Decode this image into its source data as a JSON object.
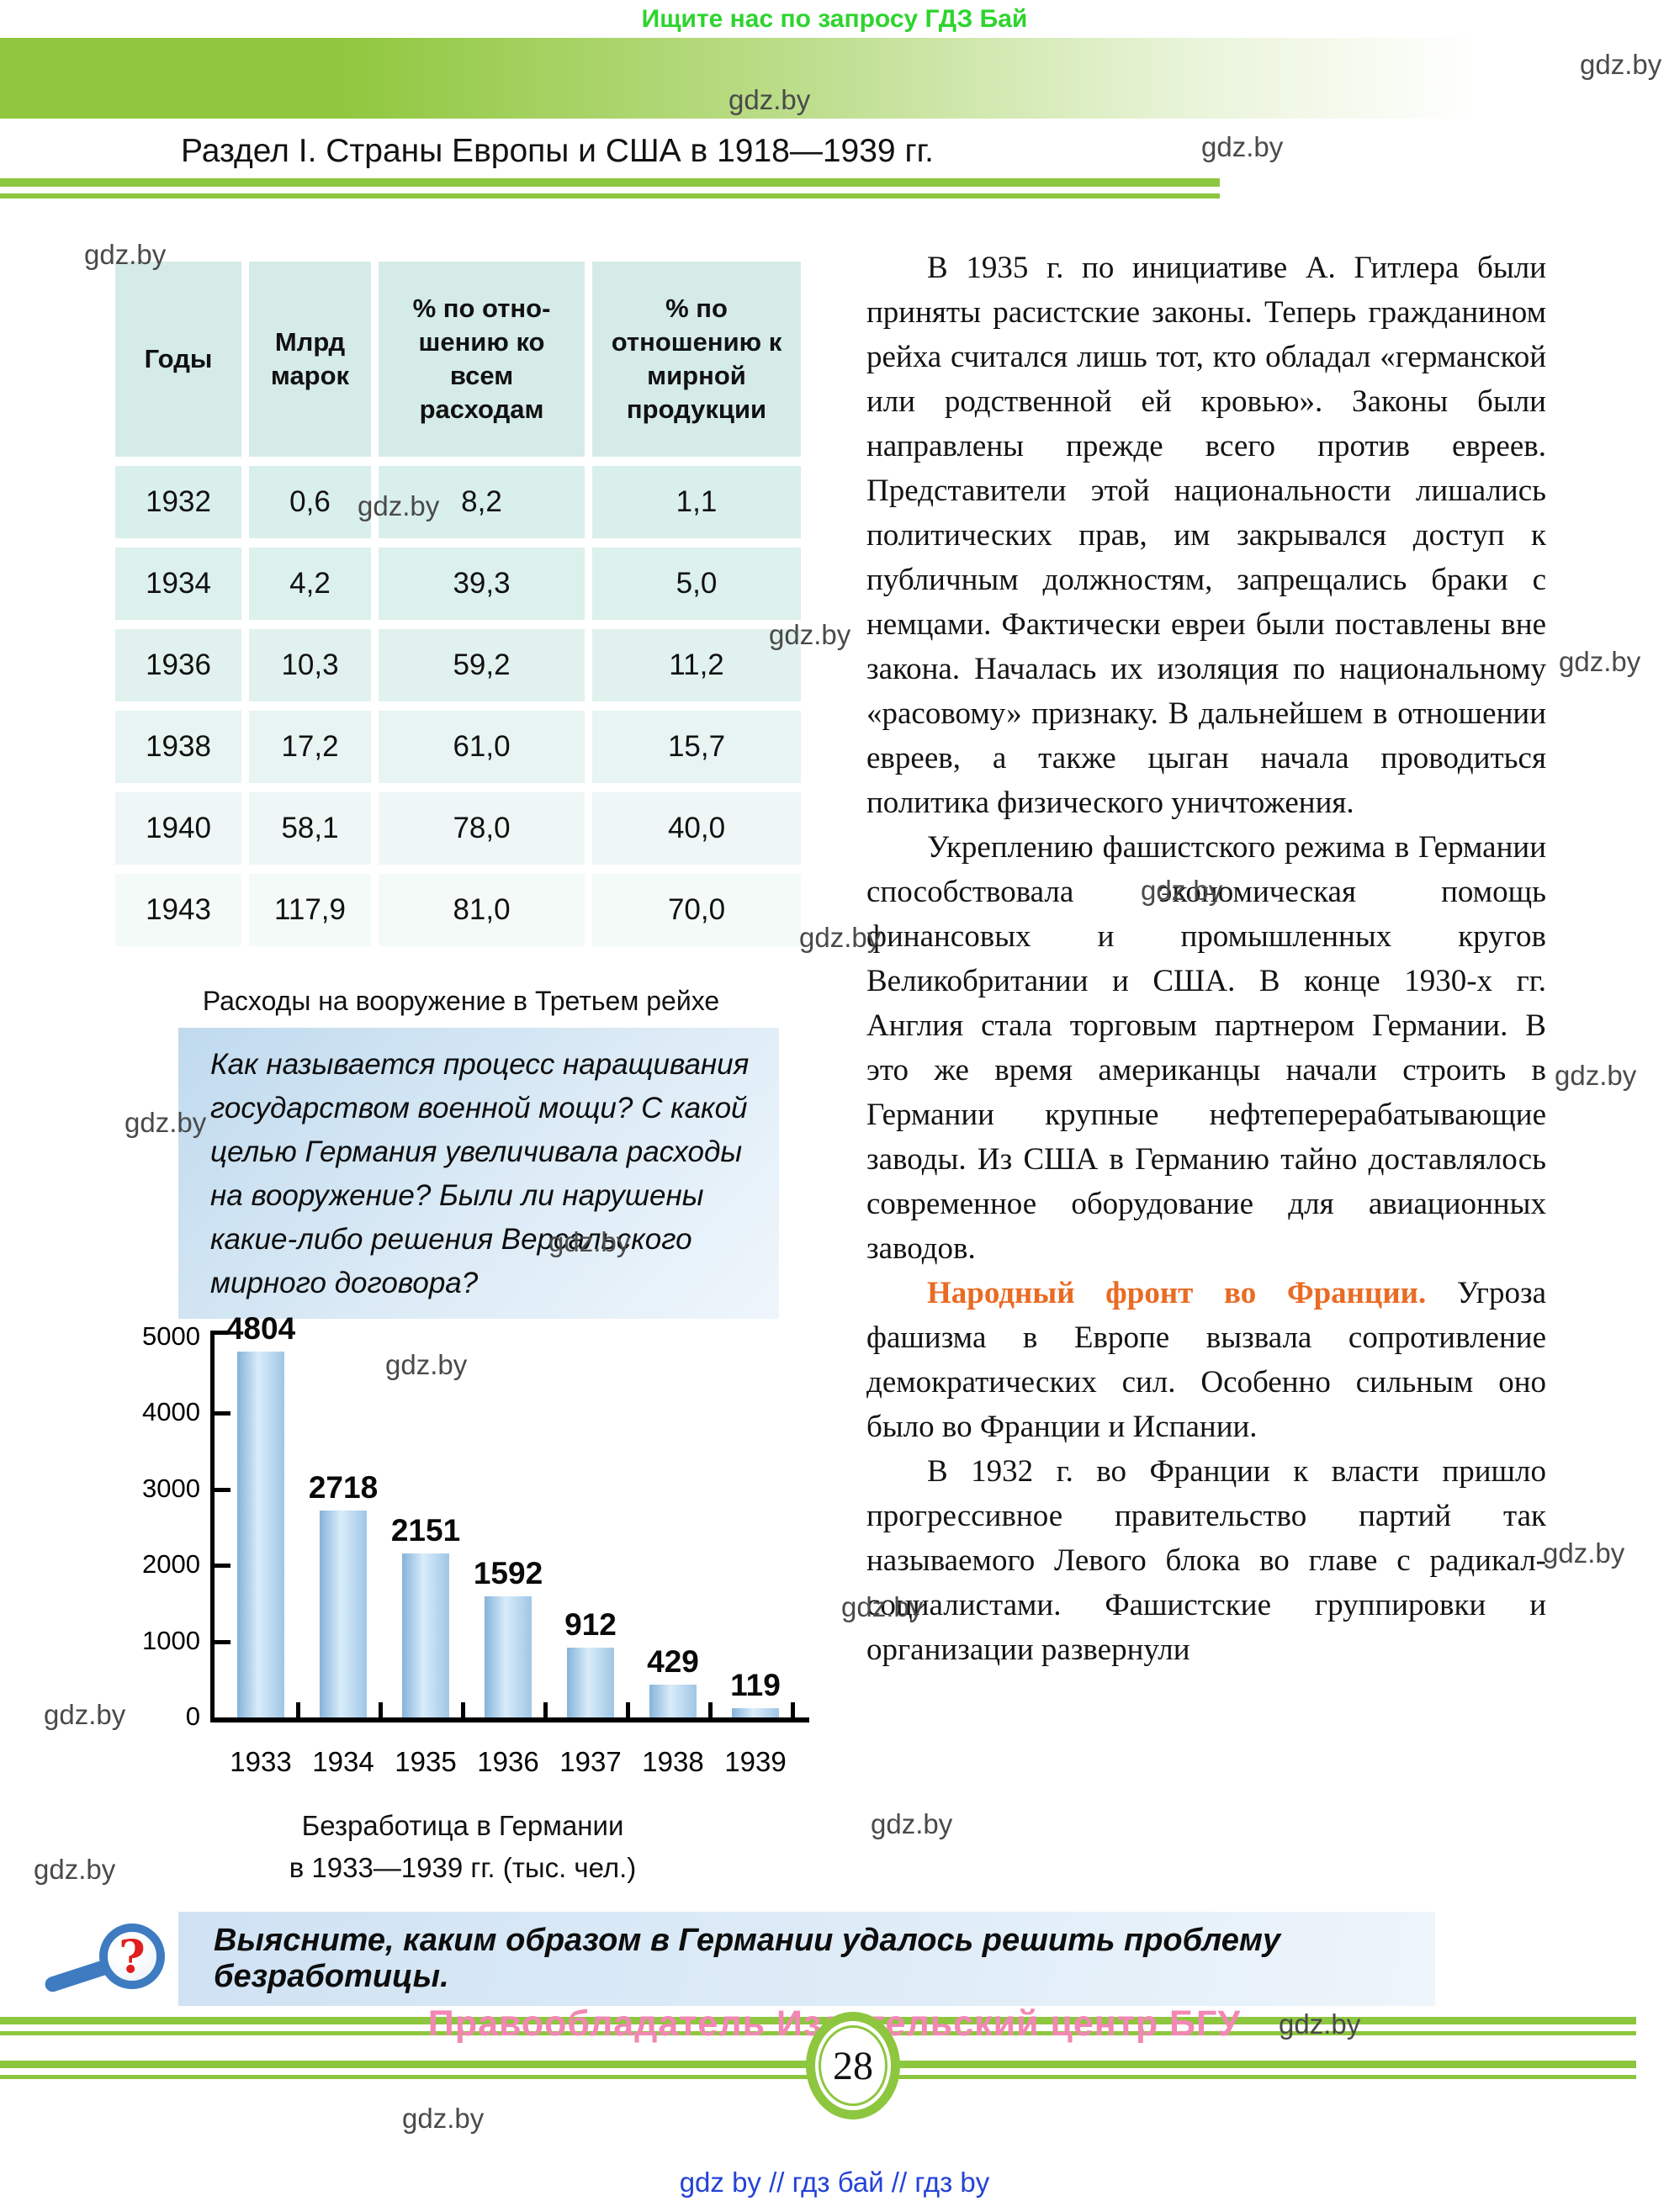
{
  "page": {
    "promo_top": "Ищите нас по запросу ГДЗ Бай",
    "watermark": "gdz.by",
    "copyright": "Правообладатель Издательский центр БГУ",
    "page_number": "28",
    "footer_links": "gdz by  //  гдз бай  //  гдз by"
  },
  "header": {
    "title": "Раздел I. Страны Европы и США в 1918—1939 гг."
  },
  "armament_table": {
    "columns": [
      "Годы",
      "Млрд марок",
      "% по отно- шению ко всем расходам",
      "% по отношению к мирной продукции"
    ],
    "rows": [
      [
        "1932",
        "0,6",
        "8,2",
        "1,1"
      ],
      [
        "1934",
        "4,2",
        "39,3",
        "5,0"
      ],
      [
        "1936",
        "10,3",
        "59,2",
        "11,2"
      ],
      [
        "1938",
        "17,2",
        "61,0",
        "15,7"
      ],
      [
        "1940",
        "58,1",
        "78,0",
        "40,0"
      ],
      [
        "1943",
        "117,9",
        "81,0",
        "70,0"
      ]
    ],
    "caption": "Расходы на вооружение в Третьем рейхе"
  },
  "question_box": {
    "text": "Как называется процесс наращивания государством военной мощи? С какой целью Германия увеличивала расходы на вооружение? Были ли нарушены какие-либо решения Версальского мирного договора?"
  },
  "chart_data": {
    "type": "bar",
    "categories": [
      "1933",
      "1934",
      "1935",
      "1936",
      "1937",
      "1938",
      "1939"
    ],
    "values": [
      4804,
      2718,
      2151,
      1592,
      912,
      429,
      119
    ],
    "title": "Безработица в Германии в 1933—1939 гг. (тыс. чел.)",
    "caption_line1": "Безработица в Германии",
    "caption_line2": "в 1933—1939 гг. (тыс. чел.)",
    "xlabel": "",
    "ylabel": "",
    "ylim": [
      0,
      5000
    ],
    "yticks": [
      0,
      1000,
      2000,
      3000,
      4000,
      5000
    ],
    "grid": false,
    "legend": "none",
    "bar_color": "#a9cfec"
  },
  "article": {
    "accent_color": "#e96b24",
    "paragraphs": [
      {
        "heading": "",
        "text": "В 1935 г. по инициативе А. Гитлера были приняты расистские законы. Теперь гражданином рейха считался лишь тот, кто обладал «германской или родственной ей кровью». Законы были направлены прежде всего против евреев. Представители этой национальности лишались политических прав, им закрывался доступ к публичным должностям, запрещались браки с немцами. Фактически евреи были поставлены вне закона. Началась их изоляция по национальному «расовому» признаку. В дальнейшем в отношении евреев, а также цыган начала проводиться политика физического уничтожения."
      },
      {
        "heading": "",
        "text": "Укреплению фашистского режима в Германии способствовала экономическая помощь финансовых и промышленных кругов Великобритании и США. В конце 1930-х гг. Англия стала торговым партнером Германии. В это же время американцы начали строить в Германии крупные нефтеперерабатывающие заводы. Из США в Германию тайно доставлялось современное оборудование для авиационных заводов."
      },
      {
        "heading": "Народный фронт во Франции.",
        "text": "Угроза фашизма в Европе вызвала сопротивление демократических сил. Особенно сильным оно было во Франции и Испании."
      },
      {
        "heading": "",
        "text": "В 1932 г. во Франции к власти пришло прогрессивное правительство партий так называемого Левого блока во главе с радикал-социалистами. Фашистские группировки и организации развернули"
      }
    ]
  },
  "task_box": {
    "text": "Выясните, каким образом в Германии удалось решить проблему безработицы."
  }
}
